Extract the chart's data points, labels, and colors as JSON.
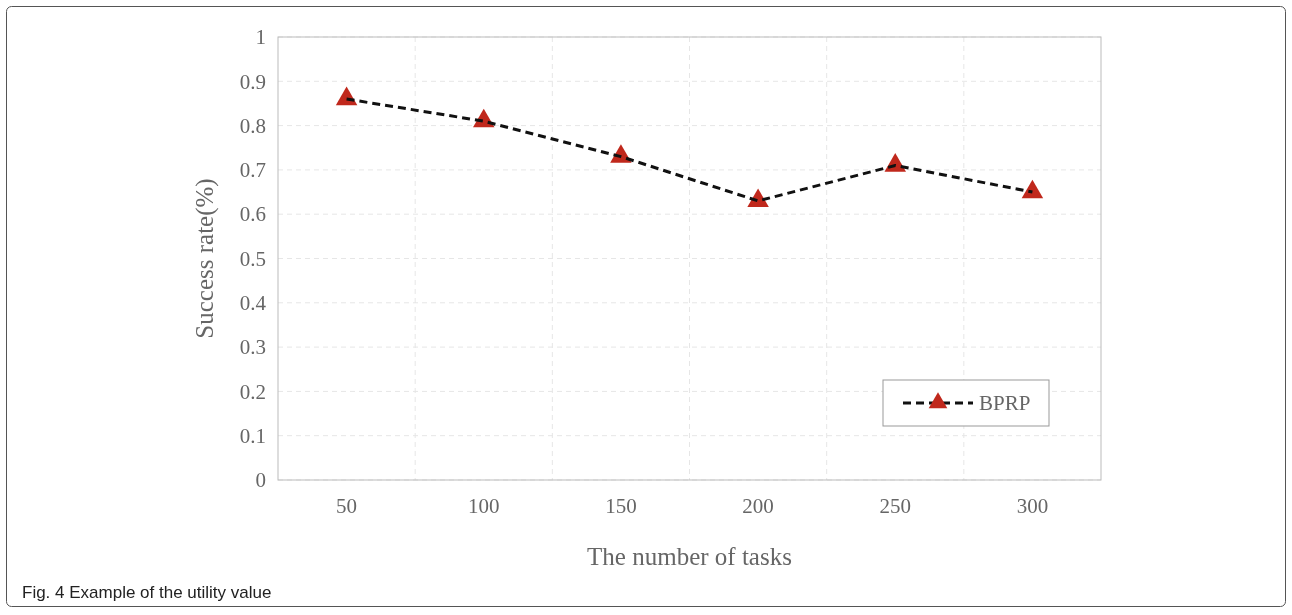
{
  "chart_data": {
    "type": "line",
    "categories": [
      "50",
      "100",
      "150",
      "200",
      "250",
      "300"
    ],
    "series": [
      {
        "name": "BPRP",
        "color": "#c0281c",
        "values": [
          0.86,
          0.81,
          0.73,
          0.63,
          0.71,
          0.65
        ]
      }
    ],
    "xlabel": "The number of tasks",
    "ylabel": "Success rate(%)",
    "ylim": [
      0,
      1
    ],
    "yticks": [
      0,
      0.1,
      0.2,
      0.3,
      0.4,
      0.5,
      0.6,
      0.7,
      0.8,
      0.9,
      1
    ],
    "grid": true,
    "legend": "bottom right",
    "marker": "triangle",
    "line_style": "dashed",
    "annotations": [
      "Fig. 4 Example of the utility value"
    ]
  }
}
